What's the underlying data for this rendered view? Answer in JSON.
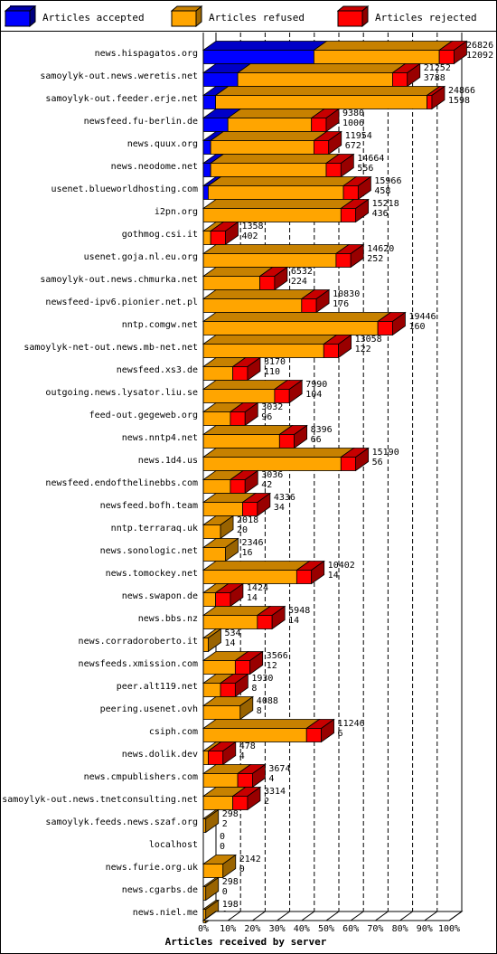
{
  "legend": [
    {
      "label": "Articles accepted",
      "color": "#0000ff"
    },
    {
      "label": "Articles refused",
      "color": "#ffa500"
    },
    {
      "label": "Articles rejected",
      "color": "#ff0000"
    }
  ],
  "colors": {
    "accepted": "#0000ff",
    "refused": "#ffa500",
    "rejected": "#ff0000",
    "empty": "#b8860b",
    "grid": "#000000"
  },
  "chart_data": {
    "type": "bar",
    "orientation": "horizontal",
    "stacked": true,
    "percent_scale": true,
    "title": "",
    "xlabel": "Articles received by server",
    "ylabel": "",
    "xlim": [
      0,
      100
    ],
    "x_ticks": [
      "0%",
      "10%",
      "20%",
      "30%",
      "40%",
      "50%",
      "60%",
      "70%",
      "80%",
      "90%",
      "100%"
    ],
    "grid": "vertical dashed lines",
    "legend_position": "top",
    "categories": [
      "news.hispagatos.org",
      "samoylyk-out.news.weretis.net",
      "samoylyk-out.feeder.erje.net",
      "newsfeed.fu-berlin.de",
      "news.quux.org",
      "news.neodome.net",
      "usenet.blueworldhosting.com",
      "i2pn.org",
      "gothmog.csi.it",
      "usenet.goja.nl.eu.org",
      "samoylyk-out.news.chmurka.net",
      "newsfeed-ipv6.pionier.net.pl",
      "nntp.comgw.net",
      "samoylyk-net-out.news.mb-net.net",
      "newsfeed.xs3.de",
      "outgoing.news.lysator.liu.se",
      "feed-out.gegeweb.org",
      "news.nntp4.net",
      "news.1d4.us",
      "newsfeed.endofthelinebbs.com",
      "newsfeed.bofh.team",
      "nntp.terraraq.uk",
      "news.sonologic.net",
      "news.tomockey.net",
      "news.swapon.de",
      "news.bbs.nz",
      "news.corradoroberto.it",
      "newsfeeds.xmission.com",
      "peer.alt119.net",
      "peering.usenet.ovh",
      "csiph.com",
      "news.dolik.dev",
      "news.cmpublishers.com",
      "samoylyk-out.news.tnetconsulting.net",
      "samoylyk.feeds.news.szaf.org",
      "localhost",
      "news.furie.org.uk",
      "news.cgarbs.de",
      "news.niel.me"
    ],
    "totals": [
      26826,
      21252,
      24866,
      9380,
      11954,
      14664,
      15966,
      15218,
      1358,
      14620,
      6532,
      10830,
      19446,
      13058,
      3170,
      7990,
      3032,
      8396,
      15190,
      3036,
      4336,
      2018,
      2346,
      10402,
      1424,
      5948,
      534,
      3566,
      1930,
      4088,
      11246,
      478,
      3674,
      3314,
      298,
      0,
      2142,
      298,
      198
    ],
    "accepted": [
      12092,
      3788,
      1598,
      1006,
      672,
      556,
      458,
      436,
      402,
      252,
      224,
      176,
      160,
      122,
      110,
      104,
      96,
      66,
      56,
      42,
      34,
      20,
      16,
      14,
      14,
      14,
      14,
      12,
      8,
      8,
      6,
      4,
      4,
      2,
      2,
      0,
      0,
      0,
      0
    ],
    "series": [
      {
        "name": "Articles accepted",
        "percent": [
          45,
          14,
          5,
          10,
          3,
          3,
          2,
          0,
          0,
          0,
          0,
          0,
          0,
          0,
          0,
          0,
          0,
          0,
          0,
          0,
          0,
          0,
          0,
          0,
          0,
          0,
          0,
          0,
          0,
          0,
          0,
          0,
          0,
          0,
          0,
          0,
          0,
          0,
          0
        ]
      },
      {
        "name": "Articles refused",
        "percent": [
          51,
          63,
          86,
          34,
          42,
          47,
          55,
          56,
          3,
          54,
          23,
          40,
          71,
          49,
          12,
          29,
          11,
          31,
          56,
          11,
          16,
          7,
          9,
          38,
          5,
          22,
          2,
          13,
          7,
          15,
          42,
          2,
          14,
          12,
          1,
          0,
          8,
          1,
          1
        ]
      },
      {
        "name": "Articles rejected",
        "percent": [
          6,
          6,
          2,
          6,
          6,
          6,
          6,
          6,
          6,
          6,
          6,
          6,
          6,
          6,
          6,
          6,
          6,
          6,
          6,
          6,
          6,
          0,
          0,
          6,
          6,
          6,
          0,
          6,
          6,
          0,
          6,
          6,
          6,
          6,
          0,
          0,
          0,
          0,
          0
        ]
      }
    ]
  }
}
